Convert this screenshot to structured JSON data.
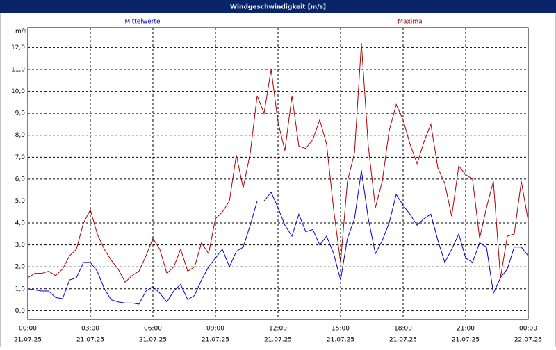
{
  "chart_data": {
    "type": "line",
    "title": "Windgeschwindigkeit [m/s]",
    "y_label": "m/s",
    "x": [
      0,
      0.33,
      0.67,
      1,
      1.33,
      1.67,
      2,
      2.33,
      2.67,
      3,
      3.33,
      3.67,
      4,
      4.33,
      4.67,
      5,
      5.33,
      5.67,
      6,
      6.33,
      6.67,
      7,
      7.33,
      7.67,
      8,
      8.33,
      8.67,
      9,
      9.33,
      9.67,
      10,
      10.33,
      10.67,
      11,
      11.33,
      11.67,
      12,
      12.33,
      12.67,
      13,
      13.33,
      13.67,
      14,
      14.33,
      14.67,
      15,
      15.33,
      15.67,
      16,
      16.33,
      16.67,
      17,
      17.33,
      17.67,
      18,
      18.33,
      18.67,
      19,
      19.33,
      19.67,
      20,
      20.33,
      20.67,
      21,
      21.33,
      21.67,
      22,
      22.33,
      22.67,
      23,
      23.33,
      23.67,
      24
    ],
    "series": [
      {
        "name": "Mittelwerte",
        "color": "#0000cc",
        "values": [
          1.0,
          0.95,
          0.9,
          0.9,
          0.6,
          0.55,
          1.4,
          1.5,
          2.2,
          2.2,
          1.8,
          1.0,
          0.5,
          0.4,
          0.35,
          0.35,
          0.3,
          0.9,
          1.1,
          0.8,
          0.4,
          0.9,
          1.2,
          0.5,
          0.7,
          1.4,
          2.0,
          2.4,
          2.8,
          2.0,
          2.7,
          2.9,
          3.9,
          5.0,
          5.0,
          5.4,
          4.7,
          3.9,
          3.4,
          4.4,
          3.6,
          3.7,
          3.0,
          3.4,
          2.6,
          1.4,
          3.3,
          4.2,
          6.4,
          4.2,
          2.6,
          3.2,
          4.0,
          5.3,
          4.8,
          4.4,
          3.9,
          4.2,
          4.4,
          3.2,
          2.2,
          2.8,
          3.5,
          2.4,
          2.2,
          3.1,
          2.9,
          0.8,
          1.5,
          1.9,
          2.9,
          2.9,
          2.5
        ]
      },
      {
        "name": "Maxima",
        "color": "#aa0000",
        "values": [
          1.5,
          1.7,
          1.7,
          1.8,
          1.6,
          1.9,
          2.5,
          2.8,
          4.0,
          4.6,
          3.5,
          2.8,
          2.3,
          1.9,
          1.3,
          1.6,
          1.8,
          2.5,
          3.3,
          2.8,
          1.7,
          2.0,
          2.8,
          1.8,
          2.0,
          3.1,
          2.6,
          4.2,
          4.5,
          5.0,
          7.1,
          5.6,
          7.2,
          9.8,
          9.0,
          11.0,
          8.6,
          7.3,
          9.8,
          7.5,
          7.4,
          7.8,
          8.7,
          7.6,
          4.6,
          2.2,
          5.9,
          7.2,
          12.2,
          7.5,
          4.7,
          5.9,
          8.2,
          9.4,
          8.7,
          7.6,
          6.7,
          7.7,
          8.5,
          6.5,
          5.8,
          4.3,
          6.6,
          6.2,
          6.0,
          3.3,
          4.7,
          5.9,
          1.5,
          3.4,
          3.5,
          5.9,
          4.1
        ]
      }
    ],
    "xlim": [
      0,
      24
    ],
    "xticks": [
      {
        "value": 0,
        "label": "00:00",
        "date": "21.07.25"
      },
      {
        "value": 3,
        "label": "03:00",
        "date": "21.07.25"
      },
      {
        "value": 6,
        "label": "06:00",
        "date": "21.07.25"
      },
      {
        "value": 9,
        "label": "09:00",
        "date": "21.07.25"
      },
      {
        "value": 12,
        "label": "12:00",
        "date": "21.07.25"
      },
      {
        "value": 15,
        "label": "15:00",
        "date": "21.07.25"
      },
      {
        "value": 18,
        "label": "18:00",
        "date": "21.07.25"
      },
      {
        "value": 21,
        "label": "21:00",
        "date": "21.07.25"
      },
      {
        "value": 24,
        "label": "00:00",
        "date": "22.07.25"
      }
    ],
    "ylim": [
      -0.4,
      12.9
    ],
    "yticks": [
      {
        "value": 0,
        "label": "0,0"
      },
      {
        "value": 1,
        "label": "1,0"
      },
      {
        "value": 2,
        "label": "2,0"
      },
      {
        "value": 3,
        "label": "3,0"
      },
      {
        "value": 4,
        "label": "4,0"
      },
      {
        "value": 5,
        "label": "5,0"
      },
      {
        "value": 6,
        "label": "6,0"
      },
      {
        "value": 7,
        "label": "7,0"
      },
      {
        "value": 8,
        "label": "8,0"
      },
      {
        "value": 9,
        "label": "9,0"
      },
      {
        "value": 10,
        "label": "10,0"
      },
      {
        "value": 11,
        "label": "11,0"
      },
      {
        "value": 12,
        "label": "12,0"
      }
    ],
    "grid": true
  }
}
